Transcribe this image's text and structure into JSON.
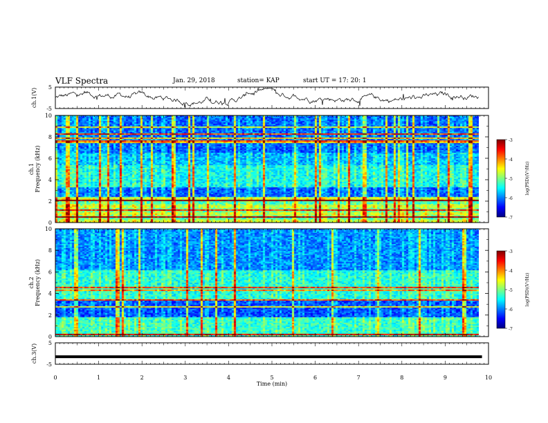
{
  "header": {
    "title": "VLF Spectra",
    "date": "Jan. 29, 2018",
    "station": "station= KAP",
    "start": "start UT =  17: 20: 1"
  },
  "chart_data": [
    {
      "type": "line",
      "ylabel": "ch.1(V)",
      "ylim": [
        -5,
        5
      ],
      "yticks": [
        "5",
        "-5"
      ],
      "xlim": [
        0,
        10
      ]
    },
    {
      "type": "heatmap",
      "ylabel": "ch.1\nFrequency (kHz)",
      "ylim": [
        0,
        10
      ],
      "yticks": [
        "0",
        "2",
        "4",
        "6",
        "8",
        "10"
      ],
      "colorbar": {
        "label": "log(PSD)(V²/Hz)",
        "range": [
          -7,
          -3
        ],
        "ticks": [
          "-3",
          "-4",
          "-5",
          "-6",
          "-7"
        ]
      }
    },
    {
      "type": "heatmap",
      "ylabel": "ch.2\nFrequency (kHz)",
      "ylim": [
        0,
        10
      ],
      "yticks": [
        "0",
        "2",
        "4",
        "6",
        "8",
        "10"
      ],
      "colorbar": {
        "label": "log(PSD)(V²/Hz)",
        "range": [
          -7,
          -3
        ],
        "ticks": [
          "-3",
          "-4",
          "-5",
          "-6",
          "-7"
        ]
      }
    },
    {
      "type": "line",
      "ylabel": "ch.3(V)",
      "ylim": [
        -5,
        5
      ],
      "yticks": [
        "5",
        "-5"
      ],
      "series": [
        {
          "values": [
            -1.5,
            -1.5
          ]
        }
      ],
      "x": [
        0,
        9.85
      ]
    }
  ],
  "xaxis": {
    "label": "Time (min)",
    "xlim": [
      0,
      10
    ],
    "ticks": [
      "0",
      "1",
      "2",
      "3",
      "4",
      "5",
      "6",
      "7",
      "8",
      "9",
      "10"
    ]
  },
  "colors": {
    "jet": [
      "#00007f",
      "#0000ff",
      "#007fff",
      "#00ffff",
      "#7fff7f",
      "#ffff00",
      "#ff7f00",
      "#ff0000",
      "#7f0000"
    ]
  }
}
